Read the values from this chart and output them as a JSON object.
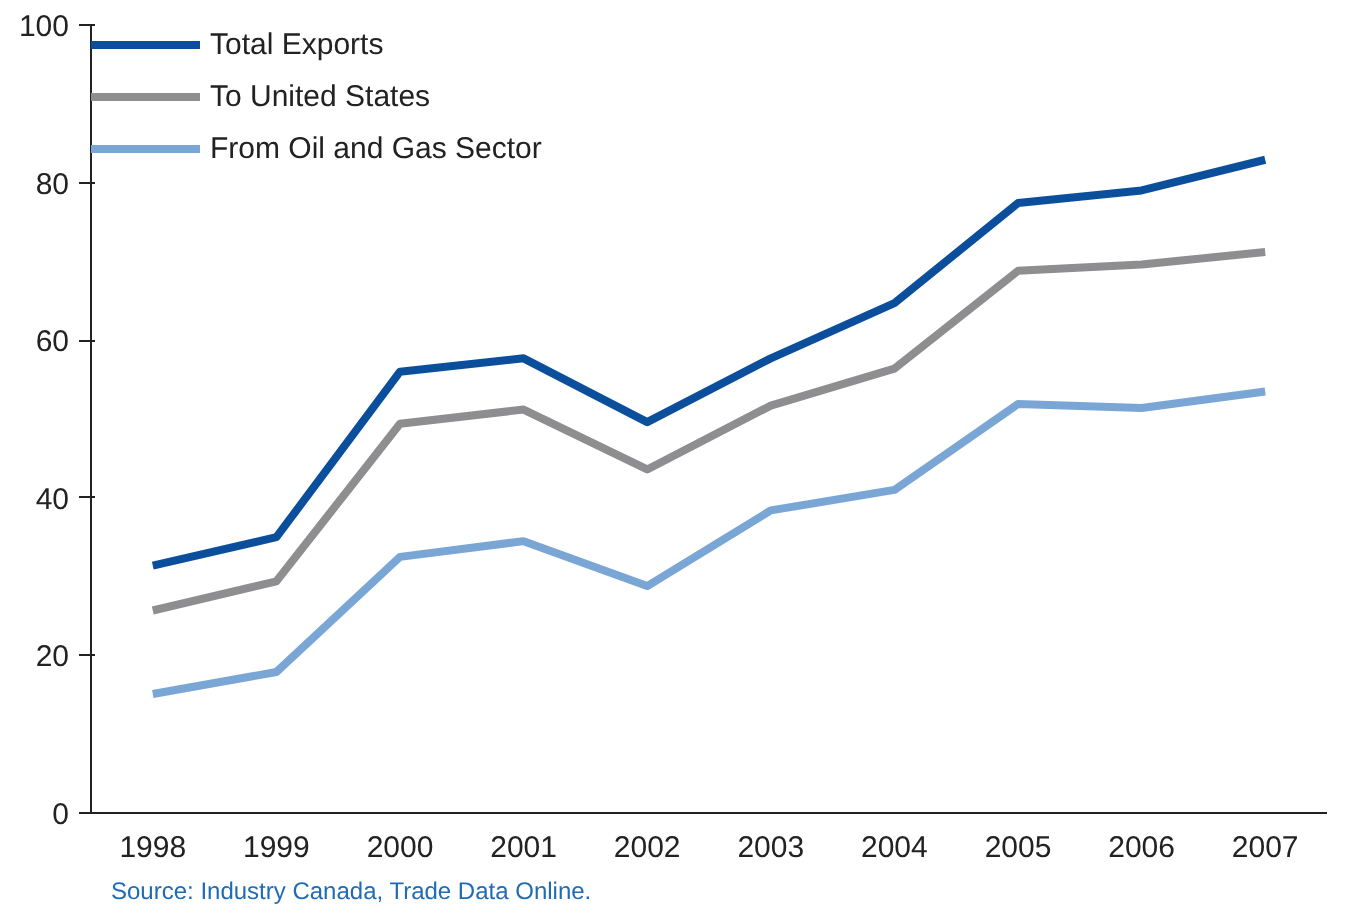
{
  "chart_data": {
    "type": "line",
    "categories": [
      "1998",
      "1999",
      "2000",
      "2001",
      "2002",
      "2003",
      "2004",
      "2005",
      "2006",
      "2007"
    ],
    "ylim": [
      0,
      100
    ],
    "yticks": [
      0,
      20,
      40,
      60,
      80,
      100
    ],
    "grid": false,
    "legend": "top left",
    "line_style": "solid",
    "series": [
      {
        "name": "Total Exports",
        "color": "#0b4f9c",
        "values": [
          31.4,
          35,
          56,
          57.7,
          49.6,
          57.7,
          64.7,
          77.4,
          79,
          82.9
        ]
      },
      {
        "name": "To United States",
        "color": "#8e8e90",
        "values": [
          25.7,
          29.4,
          49.4,
          51.2,
          43.6,
          51.7,
          56.4,
          68.8,
          69.6,
          71.2
        ]
      },
      {
        "name": "From Oil and Gas Sector",
        "color": "#7aa6d6",
        "values": [
          15.1,
          17.9,
          32.5,
          34.5,
          28.8,
          38.4,
          41,
          51.9,
          51.4,
          53.5
        ]
      }
    ],
    "annotations": [
      "Source: Industry Canada, Trade Data Online."
    ]
  }
}
